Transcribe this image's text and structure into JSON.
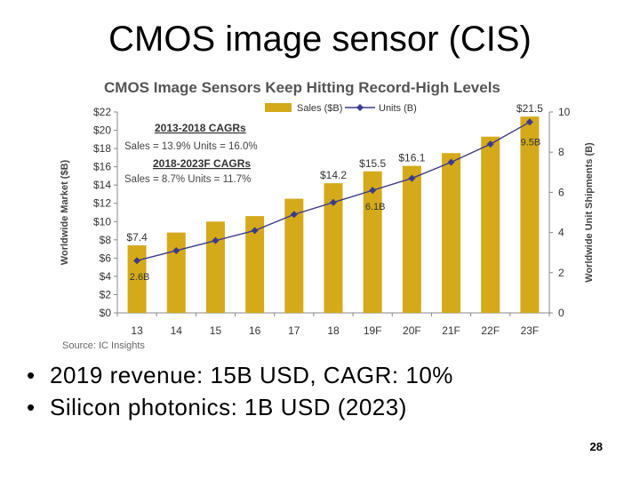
{
  "slide": {
    "title": "CMOS image sensor (CIS)",
    "bullets": [
      "2019 revenue: 15B USD, CAGR: 10%",
      "Silicon photonics: 1B USD (2023)"
    ],
    "page_number": "28"
  },
  "chart_data": {
    "type": "bar",
    "title": "CMOS Image Sensors Keep Hitting Record-High Levels",
    "categories": [
      "13",
      "14",
      "15",
      "16",
      "17",
      "18",
      "19F",
      "20F",
      "21F",
      "22F",
      "23F"
    ],
    "series": [
      {
        "name": "Sales ($B)",
        "type": "bar",
        "axis": "left",
        "values": [
          7.4,
          8.8,
          10.0,
          10.6,
          12.5,
          14.2,
          15.5,
          16.1,
          17.5,
          19.3,
          21.5
        ]
      },
      {
        "name": "Units (B)",
        "type": "line",
        "axis": "right",
        "values": [
          2.6,
          3.1,
          3.6,
          4.1,
          4.9,
          5.5,
          6.1,
          6.7,
          7.5,
          8.4,
          9.5
        ]
      }
    ],
    "ylabel": "Worldwide Market ($B)",
    "ylabel_right": "Worldwide Unit Shipments (B)",
    "ylim": [
      0,
      22
    ],
    "yticks": [
      "$0",
      "$2",
      "$4",
      "$6",
      "$8",
      "$10",
      "$12",
      "$14",
      "$16",
      "$18",
      "$20",
      "$22"
    ],
    "ylim_right": [
      0,
      10
    ],
    "yticks_right": [
      "0",
      "2",
      "4",
      "6",
      "8",
      "10"
    ],
    "bar_labels": [
      {
        "index": 0,
        "text": "$7.4"
      },
      {
        "index": 5,
        "text": "$14.2"
      },
      {
        "index": 6,
        "text": "$15.5"
      },
      {
        "index": 7,
        "text": "$16.1"
      },
      {
        "index": 10,
        "text": "$21.5"
      }
    ],
    "line_labels": [
      {
        "index": 0,
        "text": "2.6B"
      },
      {
        "index": 6,
        "text": "6.1B"
      },
      {
        "index": 10,
        "text": "9.5B"
      }
    ],
    "cagr_blocks": [
      {
        "heading": "2013-2018 CAGRs",
        "text": "Sales = 13.9%  Units = 16.0%"
      },
      {
        "heading": "2018-2023F CAGRs",
        "text": "Sales = 8.7%  Units = 11.7%"
      }
    ],
    "source": "Source: IC Insights",
    "legend_position": "top-right",
    "colors": {
      "bar": "#d4aa1a",
      "line": "#3b3a8a",
      "axis": "#888888",
      "text": "#333333"
    }
  }
}
